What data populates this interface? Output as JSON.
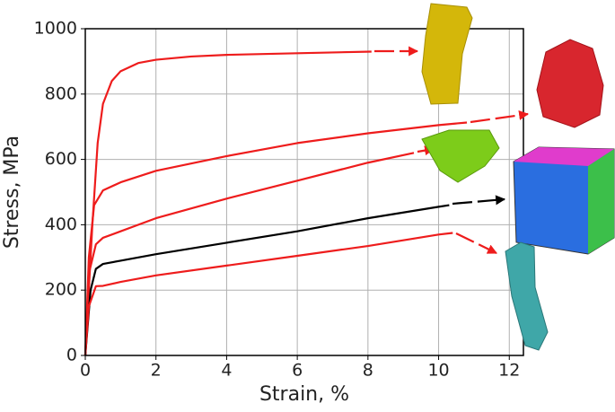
{
  "chart_data": {
    "type": "line",
    "x_label": "Strain, %",
    "y_label": "Stress, MPa",
    "xlim": [
      0,
      12.4
    ],
    "ylim": [
      0,
      1000
    ],
    "xticks": [
      0,
      2,
      4,
      6,
      8,
      10,
      12
    ],
    "yticks": [
      0,
      200,
      400,
      600,
      800,
      1000
    ],
    "grid": true,
    "series": [
      {
        "color": "#ee1c1c",
        "x": [
          0,
          0.2,
          0.35,
          0.5,
          0.75,
          1,
          1.5,
          2,
          3,
          4,
          6,
          8.1
        ],
        "values": [
          0,
          400,
          650,
          770,
          840,
          870,
          895,
          905,
          915,
          920,
          925,
          930
        ]
      },
      {
        "color": "#ee1c1c",
        "x": [
          0,
          0.1,
          0.25,
          0.5,
          1,
          2,
          4,
          6,
          8,
          10,
          10.8
        ],
        "values": [
          0,
          300,
          460,
          505,
          530,
          565,
          610,
          650,
          680,
          705,
          713
        ]
      },
      {
        "color": "#ee1c1c",
        "x": [
          0,
          0.1,
          0.3,
          0.5,
          1,
          2,
          4,
          6,
          8,
          9.3
        ],
        "values": [
          0,
          250,
          340,
          360,
          380,
          420,
          480,
          535,
          590,
          620
        ]
      },
      {
        "color": "#000000",
        "x": [
          0,
          0.15,
          0.3,
          0.5,
          1,
          2,
          4,
          6,
          8,
          10,
          10.3
        ],
        "values": [
          0,
          200,
          265,
          280,
          290,
          310,
          345,
          380,
          420,
          455,
          460
        ]
      },
      {
        "color": "#ee1c1c",
        "x": [
          0,
          0.1,
          0.3,
          0.5,
          1,
          2,
          4,
          6,
          8,
          10,
          10.4
        ],
        "values": [
          0,
          150,
          212,
          213,
          225,
          245,
          275,
          305,
          335,
          370,
          375
        ]
      }
    ]
  }
}
